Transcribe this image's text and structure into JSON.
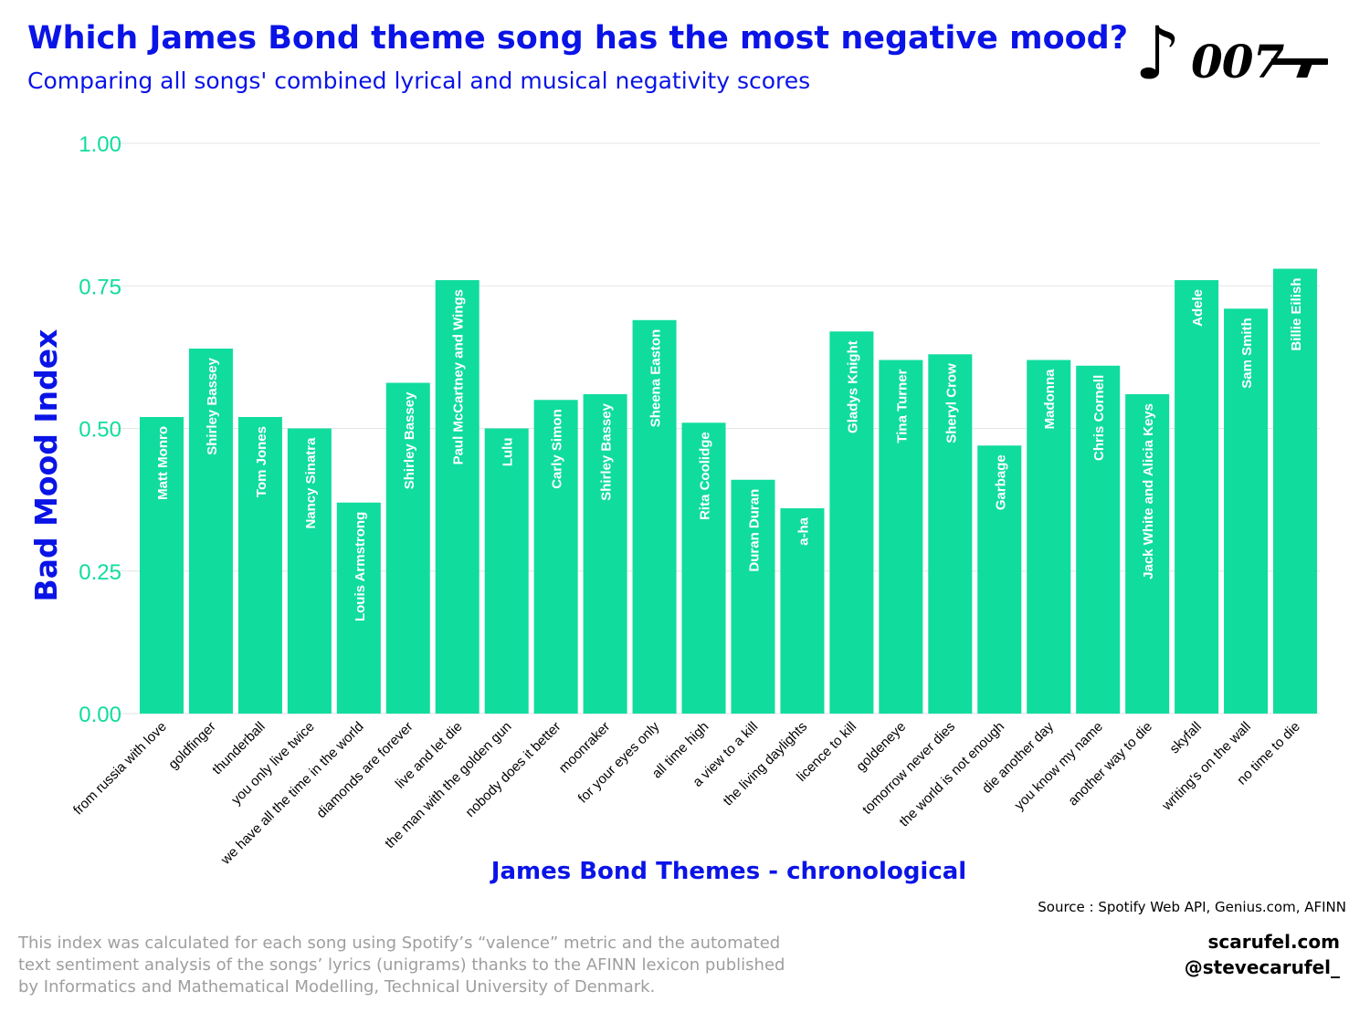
{
  "header": {
    "title": "Which James Bond theme song has the most negative mood?",
    "subtitle": "Comparing all songs' combined lyrical and musical negativity scores",
    "logo_text": "007"
  },
  "chart_data": {
    "type": "bar",
    "xlabel": "James Bond Themes - chronological",
    "ylabel": "Bad Mood Index",
    "ylim": [
      0,
      1
    ],
    "yticks": [
      "0.00",
      "0.25",
      "0.50",
      "0.75",
      "1.00"
    ],
    "ytick_values": [
      0,
      0.25,
      0.5,
      0.75,
      1.0
    ],
    "grid": true,
    "categories": [
      "from russia with love",
      "goldfinger",
      "thunderball",
      "you only live twice",
      "we have all the time in the world",
      "diamonds are forever",
      "live and let die",
      "the man with the golden gun",
      "nobody does it better",
      "moonraker",
      "for your eyes only",
      "all time high",
      "a view to a kill",
      "the living daylights",
      "licence to kill",
      "goldeneye",
      "tomorrow never dies",
      "the world is not enough",
      "die another day",
      "you know my name",
      "another way to die",
      "skyfall",
      "writing's on the wall",
      "no time to die"
    ],
    "artists": [
      "Matt Monro",
      "Shirley Bassey",
      "Tom Jones",
      "Nancy Sinatra",
      "Louis Armstrong",
      "Shirley Bassey",
      "Paul McCartney and Wings",
      "Lulu",
      "Carly Simon",
      "Shirley Bassey",
      "Sheena Easton",
      "Rita Coolidge",
      "Duran Duran",
      "a-ha",
      "Gladys Knight",
      "Tina Turner",
      "Sheryl Crow",
      "Garbage",
      "Madonna",
      "Chris Cornell",
      "Jack White and Alicia Keys",
      "Adele",
      "Sam Smith",
      "Billie Eilish"
    ],
    "values": [
      0.52,
      0.64,
      0.52,
      0.5,
      0.37,
      0.58,
      0.76,
      0.5,
      0.55,
      0.56,
      0.69,
      0.51,
      0.41,
      0.36,
      0.67,
      0.62,
      0.63,
      0.47,
      0.62,
      0.61,
      0.56,
      0.76,
      0.71,
      0.78
    ],
    "bar_color": "#10dc9e"
  },
  "footer": {
    "source": "Source : Spotify Web API, Genius.com, AFINN",
    "note": "This index was calculated for each song using Spotify’s “valence” metric and the automated text sentiment analysis of the songs’ lyrics (unigrams) thanks to the AFINN lexicon published by Informatics and Mathematical Modelling, Technical University of Denmark.",
    "website": "scarufel.com",
    "handle": "@stevecarufel_"
  }
}
